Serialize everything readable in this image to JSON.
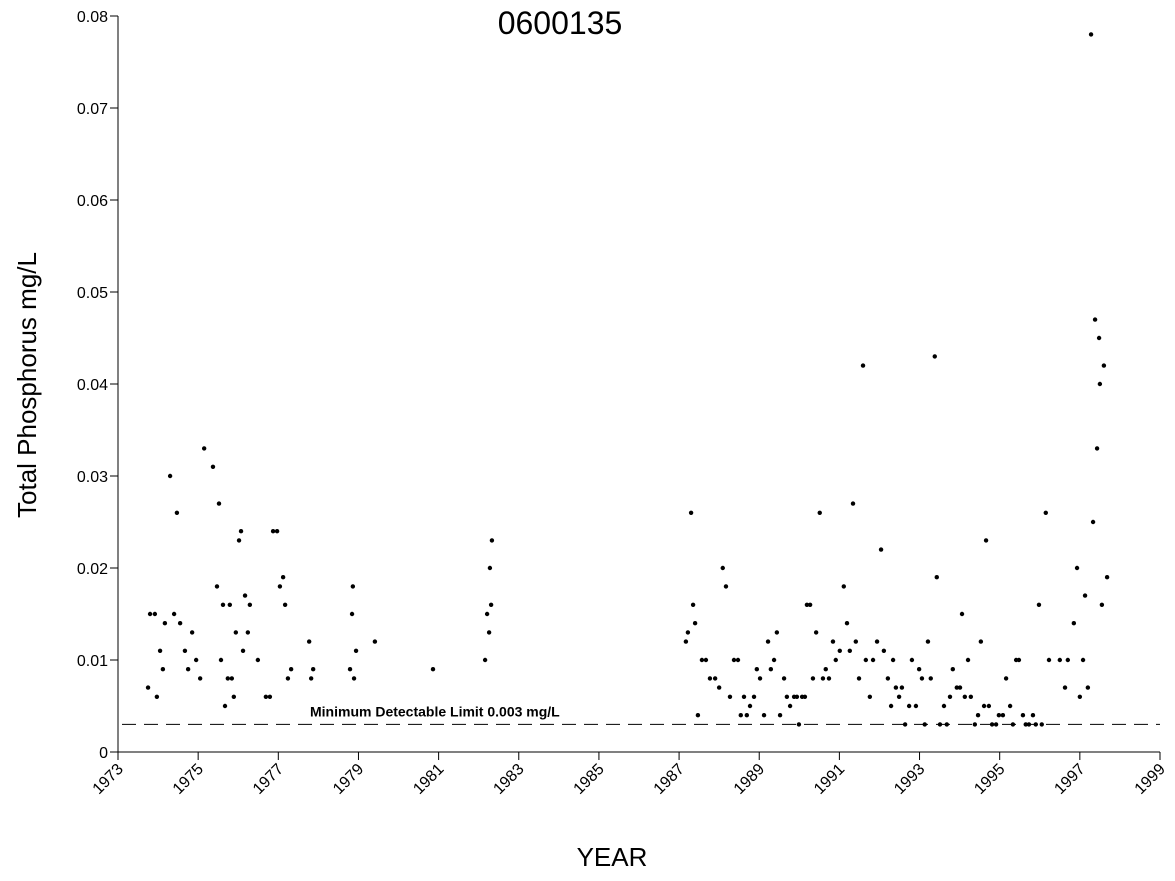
{
  "chart_data": {
    "type": "line",
    "title": "0600135",
    "x_label": "YEAR",
    "y_label": "Total Phosphorus mg/L",
    "xlim": [
      1973,
      1999
    ],
    "xticks": [
      1973,
      1975,
      1977,
      1979,
      1981,
      1983,
      1985,
      1987,
      1989,
      1991,
      1993,
      1995,
      1997,
      1999
    ],
    "ylim": [
      0,
      0.08
    ],
    "yticks": [
      0,
      0.01,
      0.02,
      0.03,
      0.04,
      0.05,
      0.06,
      0.07,
      0.08
    ],
    "reference_line": {
      "value": 0.003,
      "label": "Minimum Detectable Limit 0.003 mg/L",
      "color": "#000000"
    },
    "series": [
      {
        "color": "#000000",
        "x": [
          1973.75,
          1973.8,
          1973.92,
          1973.97,
          1974.05,
          1974.12,
          1974.17,
          1974.3,
          1974.4,
          1974.47,
          1974.55,
          1974.67,
          1974.75,
          1974.85,
          1974.95,
          1975.05,
          1975.15,
          1975.37,
          1975.47,
          1975.52,
          1975.57,
          1975.62,
          1975.67,
          1975.74,
          1975.79,
          1975.84,
          1975.89,
          1975.94,
          1976.02,
          1976.07,
          1976.12,
          1976.17,
          1976.24,
          1976.29,
          1976.49,
          1976.69,
          1976.79,
          1976.87,
          1976.97,
          1977.04,
          1977.12,
          1977.17,
          1977.24,
          1977.32,
          1977.77,
          1977.82,
          1977.87,
          1978.79,
          1978.84,
          1978.86,
          1978.89,
          1978.94,
          1979.41,
          1980.86,
          1982.16,
          1982.21,
          1982.26,
          1982.28,
          1982.31,
          1982.33,
          1987.17,
          1987.22,
          1987.3,
          1987.35,
          1987.4,
          1987.47,
          1987.57,
          1987.67,
          1987.77,
          1987.9,
          1988.0,
          1988.09,
          1988.17,
          1988.27,
          1988.37,
          1988.47,
          1988.54,
          1988.62,
          1988.69,
          1988.77,
          1988.87,
          1988.94,
          1989.02,
          1989.12,
          1989.22,
          1989.29,
          1989.37,
          1989.44,
          1989.52,
          1989.62,
          1989.69,
          1989.77,
          1989.87,
          1989.94,
          1989.99,
          1990.07,
          1990.14,
          1990.19,
          1990.27,
          1990.34,
          1990.42,
          1990.51,
          1990.59,
          1990.66,
          1990.74,
          1990.84,
          1990.91,
          1991.01,
          1991.11,
          1991.19,
          1991.26,
          1991.34,
          1991.41,
          1991.49,
          1991.59,
          1991.66,
          1991.76,
          1991.84,
          1991.94,
          1992.04,
          1992.11,
          1992.21,
          1992.29,
          1992.34,
          1992.41,
          1992.49,
          1992.56,
          1992.64,
          1992.74,
          1992.81,
          1992.91,
          1992.99,
          1993.06,
          1993.13,
          1993.21,
          1993.28,
          1993.38,
          1993.43,
          1993.51,
          1993.61,
          1993.68,
          1993.76,
          1993.83,
          1993.93,
          1994.01,
          1994.06,
          1994.13,
          1994.21,
          1994.28,
          1994.38,
          1994.46,
          1994.53,
          1994.61,
          1994.66,
          1994.73,
          1994.81,
          1994.91,
          1994.98,
          1995.08,
          1995.16,
          1995.26,
          1995.33,
          1995.41,
          1995.48,
          1995.58,
          1995.65,
          1995.73,
          1995.83,
          1995.9,
          1995.98,
          1996.05,
          1996.15,
          1996.23,
          1996.5,
          1996.63,
          1996.7,
          1996.85,
          1996.93,
          1997.0,
          1997.08,
          1997.13,
          1997.2,
          1997.28,
          1997.33,
          1997.38,
          1997.43,
          1997.48,
          1997.5,
          1997.55,
          1997.6,
          1997.68
        ],
        "values": [
          0.007,
          0.015,
          0.015,
          0.006,
          0.011,
          0.009,
          0.014,
          0.03,
          0.015,
          0.026,
          0.014,
          0.011,
          0.009,
          0.013,
          0.01,
          0.008,
          0.033,
          0.031,
          0.018,
          0.027,
          0.01,
          0.016,
          0.005,
          0.008,
          0.016,
          0.008,
          0.006,
          0.013,
          0.023,
          0.024,
          0.011,
          0.017,
          0.013,
          0.016,
          0.01,
          0.006,
          0.006,
          0.024,
          0.024,
          0.018,
          0.019,
          0.016,
          0.008,
          0.009,
          0.012,
          0.008,
          0.009,
          0.009,
          0.015,
          0.018,
          0.008,
          0.011,
          0.012,
          0.009,
          0.01,
          0.015,
          0.013,
          0.02,
          0.016,
          0.023,
          0.012,
          0.013,
          0.026,
          0.016,
          0.014,
          0.004,
          0.01,
          0.01,
          0.008,
          0.008,
          0.007,
          0.02,
          0.018,
          0.006,
          0.01,
          0.01,
          0.004,
          0.006,
          0.004,
          0.005,
          0.006,
          0.009,
          0.008,
          0.004,
          0.012,
          0.009,
          0.01,
          0.013,
          0.004,
          0.008,
          0.006,
          0.005,
          0.006,
          0.006,
          0.003,
          0.006,
          0.006,
          0.016,
          0.016,
          0.008,
          0.013,
          0.026,
          0.008,
          0.009,
          0.008,
          0.012,
          0.01,
          0.011,
          0.018,
          0.014,
          0.011,
          0.027,
          0.012,
          0.008,
          0.042,
          0.01,
          0.006,
          0.01,
          0.012,
          0.022,
          0.011,
          0.008,
          0.005,
          0.01,
          0.007,
          0.006,
          0.007,
          0.003,
          0.005,
          0.01,
          0.005,
          0.009,
          0.008,
          0.003,
          0.012,
          0.008,
          0.043,
          0.019,
          0.003,
          0.005,
          0.003,
          0.006,
          0.009,
          0.007,
          0.007,
          0.015,
          0.006,
          0.01,
          0.006,
          0.003,
          0.004,
          0.012,
          0.005,
          0.023,
          0.005,
          0.003,
          0.003,
          0.004,
          0.004,
          0.008,
          0.005,
          0.003,
          0.01,
          0.01,
          0.004,
          0.003,
          0.003,
          0.004,
          0.003,
          0.016,
          0.003,
          0.026,
          0.01,
          0.01,
          0.007,
          0.01,
          0.014,
          0.02,
          0.006,
          0.01,
          0.017,
          0.007,
          0.078,
          0.025,
          0.047,
          0.033,
          0.045,
          0.04,
          0.016,
          0.042,
          0.019
        ]
      }
    ]
  }
}
